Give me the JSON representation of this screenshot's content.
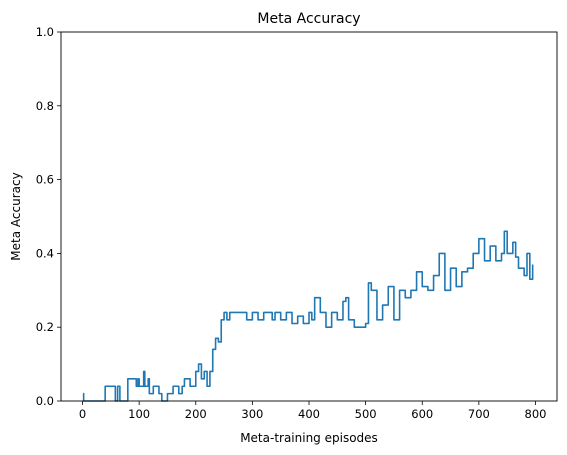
{
  "chart_data": {
    "type": "line",
    "title": "Meta Accuracy",
    "xlabel": "Meta-training episodes",
    "ylabel": "Meta Accuracy",
    "xlim": [
      -38,
      838
    ],
    "ylim": [
      0,
      1
    ],
    "xticks": [
      0,
      100,
      200,
      300,
      400,
      500,
      600,
      700,
      800
    ],
    "yticks": [
      0.0,
      0.2,
      0.4,
      0.6,
      0.8,
      1.0
    ],
    "ytick_labels": [
      "0.0",
      "0.2",
      "0.4",
      "0.6",
      "0.8",
      "1.0"
    ],
    "grid": false,
    "series_color": "#1f77b4",
    "series": [
      {
        "x": [
          1,
          2,
          3,
          20,
          22,
          40,
          48,
          58,
          62,
          66,
          80,
          95,
          98,
          100,
          108,
          110,
          116,
          118,
          125,
          135,
          140,
          150,
          160,
          170,
          176,
          180,
          190,
          195,
          200,
          205,
          210,
          215,
          220,
          225,
          230,
          235,
          240,
          245,
          250,
          255,
          260,
          270,
          280,
          290,
          300,
          310,
          320,
          330,
          335,
          340,
          350,
          360,
          370,
          380,
          390,
          400,
          405,
          410,
          420,
          430,
          440,
          450,
          460,
          465,
          470,
          480,
          490,
          500,
          505,
          510,
          520,
          530,
          540,
          550,
          560,
          570,
          580,
          590,
          600,
          610,
          620,
          630,
          640,
          650,
          660,
          670,
          680,
          690,
          700,
          710,
          720,
          730,
          740,
          745,
          750,
          760,
          765,
          770,
          780,
          785,
          790,
          795
        ],
        "y": [
          0.02,
          0.0,
          0.0,
          0.0,
          0.0,
          0.04,
          0.04,
          0.0,
          0.04,
          0.0,
          0.06,
          0.04,
          0.06,
          0.04,
          0.08,
          0.04,
          0.06,
          0.02,
          0.04,
          0.02,
          0.0,
          0.02,
          0.04,
          0.02,
          0.04,
          0.06,
          0.04,
          0.04,
          0.08,
          0.1,
          0.06,
          0.08,
          0.04,
          0.08,
          0.14,
          0.17,
          0.16,
          0.22,
          0.24,
          0.22,
          0.24,
          0.24,
          0.24,
          0.22,
          0.24,
          0.22,
          0.24,
          0.24,
          0.22,
          0.24,
          0.22,
          0.24,
          0.21,
          0.23,
          0.21,
          0.24,
          0.22,
          0.28,
          0.24,
          0.2,
          0.24,
          0.22,
          0.27,
          0.28,
          0.22,
          0.2,
          0.2,
          0.21,
          0.32,
          0.3,
          0.22,
          0.26,
          0.31,
          0.22,
          0.3,
          0.28,
          0.3,
          0.35,
          0.31,
          0.3,
          0.34,
          0.4,
          0.3,
          0.36,
          0.31,
          0.35,
          0.36,
          0.4,
          0.44,
          0.38,
          0.42,
          0.38,
          0.4,
          0.46,
          0.4,
          0.43,
          0.39,
          0.36,
          0.34,
          0.4,
          0.33,
          0.37
        ]
      }
    ]
  }
}
